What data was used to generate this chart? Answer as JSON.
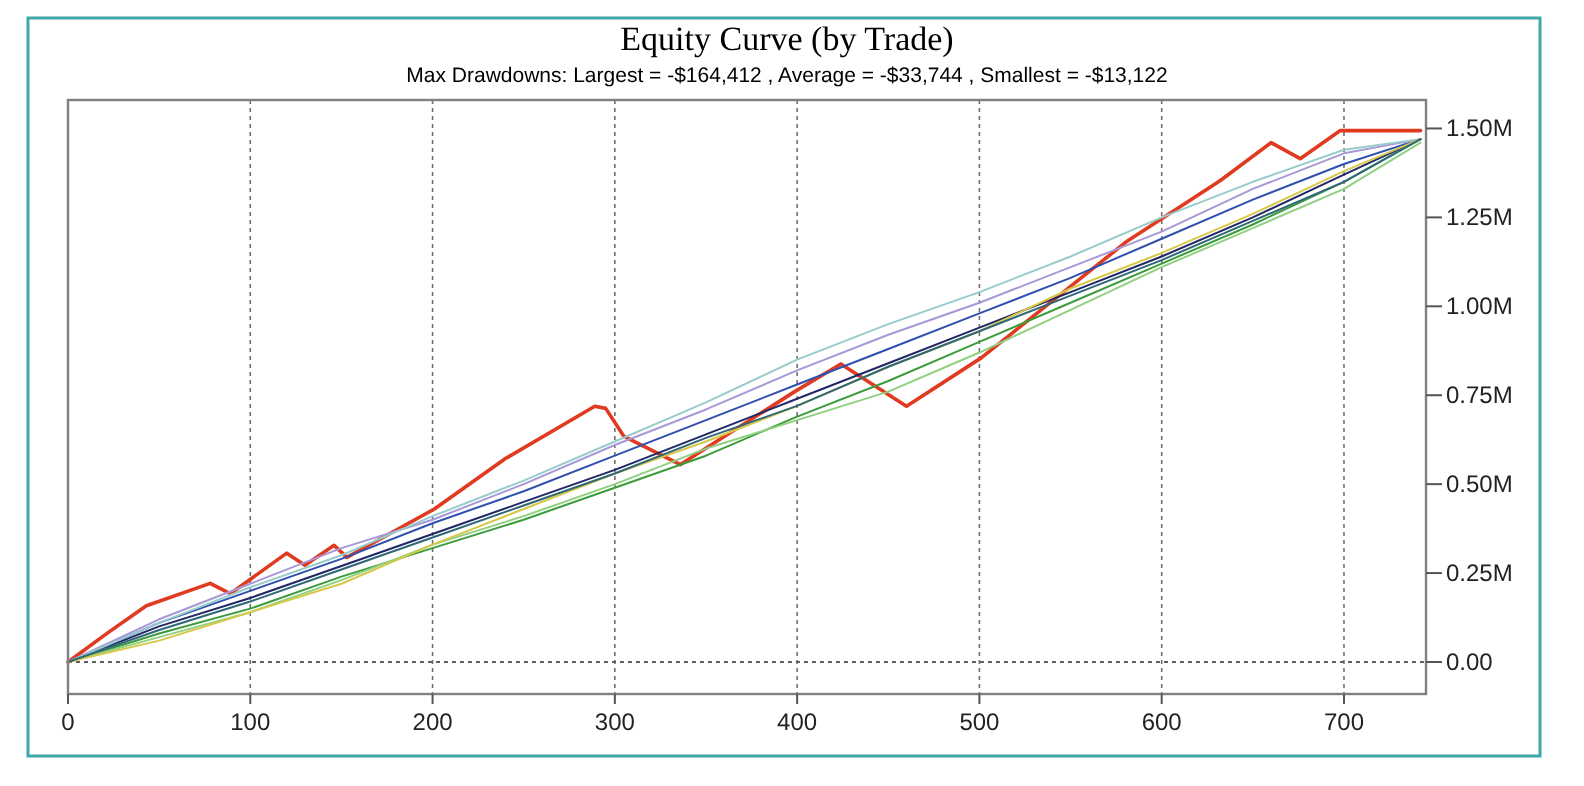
{
  "chart_data": {
    "type": "line",
    "title": "Equity Curve (by Trade)",
    "subtitle": "Max Drawdowns:  Largest = -$164,412 , Average = -$33,744 , Smallest = -$13,122",
    "xlim": [
      0,
      745
    ],
    "xticks": [
      0,
      100,
      200,
      300,
      400,
      500,
      600,
      700
    ],
    "ylim": [
      -90000,
      1580000
    ],
    "yticks": [
      {
        "value": 0,
        "label": "0.00"
      },
      {
        "value": 250000,
        "label": "0.25M"
      },
      {
        "value": 500000,
        "label": "0.50M"
      },
      {
        "value": 750000,
        "label": "0.75M"
      },
      {
        "value": 1000000,
        "label": "1.00M"
      },
      {
        "value": 1250000,
        "label": "1.25M"
      },
      {
        "value": 1500000,
        "label": "1.50M"
      }
    ],
    "grid": "x",
    "line_style": "solid",
    "ref_lines": [
      {
        "axis": "y",
        "value": 0,
        "color": "#606060",
        "line_style": "dotted"
      }
    ],
    "series": [
      {
        "color": "#e03a20",
        "x": [
          0,
          21,
          43,
          78,
          89,
          120,
          130,
          146,
          153,
          201,
          240,
          289,
          295,
          305,
          336,
          398,
          424,
          460,
          501,
          581,
          632,
          660,
          676,
          698,
          742
        ],
        "values": [
          0,
          79000,
          158000,
          221000,
          192000,
          306000,
          272000,
          328000,
          294000,
          430000,
          572000,
          719000,
          713000,
          634000,
          555000,
          758000,
          838000,
          719000,
          855000,
          1183000,
          1353000,
          1460000,
          1415000,
          1494000,
          1494000
        ]
      },
      {
        "color": "#3050b0",
        "x": [
          0,
          50,
          100,
          150,
          200,
          250,
          300,
          350,
          400,
          450,
          500,
          550,
          600,
          650,
          700,
          742
        ],
        "values": [
          0,
          110000,
          200000,
          290000,
          390000,
          480000,
          580000,
          680000,
          780000,
          880000,
          980000,
          1080000,
          1190000,
          1300000,
          1400000,
          1470000
        ]
      },
      {
        "color": "#202868",
        "x": [
          0,
          50,
          100,
          150,
          200,
          250,
          300,
          350,
          400,
          450,
          500,
          550,
          600,
          650,
          700,
          742
        ],
        "values": [
          0,
          100000,
          180000,
          270000,
          360000,
          450000,
          540000,
          640000,
          740000,
          840000,
          940000,
          1040000,
          1140000,
          1250000,
          1370000,
          1470000
        ]
      },
      {
        "color": "#a898d8",
        "x": [
          0,
          50,
          100,
          150,
          200,
          250,
          300,
          350,
          400,
          450,
          500,
          550,
          600,
          650,
          700,
          742
        ],
        "values": [
          0,
          120000,
          220000,
          320000,
          400000,
          500000,
          610000,
          710000,
          820000,
          920000,
          1010000,
          1110000,
          1210000,
          1330000,
          1430000,
          1470000
        ]
      },
      {
        "color": "#98cccc",
        "x": [
          0,
          50,
          100,
          150,
          200,
          250,
          300,
          350,
          400,
          450,
          500,
          550,
          600,
          650,
          700,
          742
        ],
        "values": [
          0,
          110000,
          210000,
          300000,
          410000,
          510000,
          620000,
          730000,
          850000,
          950000,
          1040000,
          1140000,
          1250000,
          1350000,
          1440000,
          1470000
        ]
      },
      {
        "color": "#3c9c3c",
        "x": [
          0,
          50,
          100,
          150,
          200,
          250,
          300,
          350,
          400,
          450,
          500,
          550,
          600,
          650,
          700,
          742
        ],
        "values": [
          0,
          80000,
          150000,
          240000,
          320000,
          400000,
          490000,
          580000,
          690000,
          790000,
          900000,
          1010000,
          1120000,
          1230000,
          1350000,
          1470000
        ]
      },
      {
        "color": "#90d080",
        "x": [
          0,
          50,
          100,
          150,
          200,
          250,
          300,
          350,
          400,
          450,
          500,
          550,
          600,
          650,
          700,
          742
        ],
        "values": [
          0,
          70000,
          140000,
          230000,
          330000,
          410000,
          500000,
          600000,
          680000,
          760000,
          870000,
          990000,
          1110000,
          1220000,
          1330000,
          1460000
        ]
      },
      {
        "color": "#d8c848",
        "x": [
          0,
          50,
          100,
          150,
          200,
          250,
          300,
          350,
          400,
          450,
          500,
          550,
          600,
          650,
          700,
          742
        ],
        "values": [
          0,
          60000,
          140000,
          220000,
          330000,
          430000,
          530000,
          620000,
          720000,
          830000,
          930000,
          1050000,
          1150000,
          1260000,
          1380000,
          1470000
        ]
      },
      {
        "color": "#306878",
        "x": [
          0,
          50,
          100,
          150,
          200,
          250,
          300,
          350,
          400,
          450,
          500,
          550,
          600,
          650,
          700,
          742
        ],
        "values": [
          0,
          90000,
          170000,
          260000,
          350000,
          440000,
          530000,
          630000,
          720000,
          830000,
          930000,
          1030000,
          1130000,
          1240000,
          1350000,
          1470000
        ]
      }
    ]
  }
}
